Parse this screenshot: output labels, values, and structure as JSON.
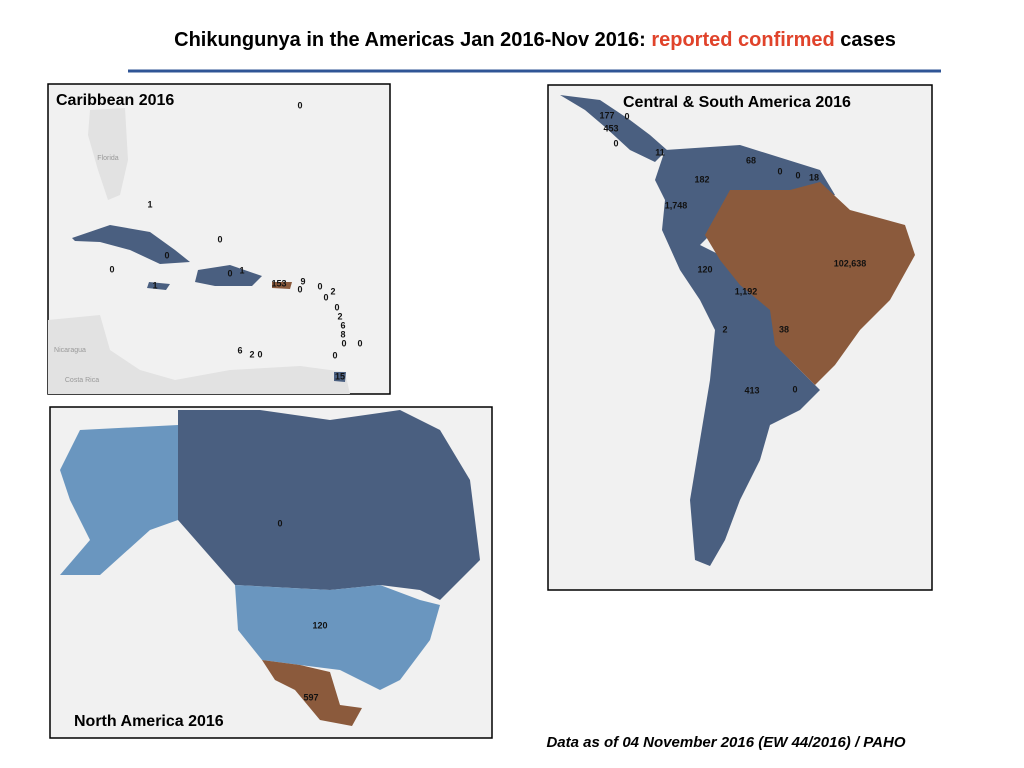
{
  "header": {
    "title": {
      "prefix": "Chikungunya in the Americas Jan 2016-Nov 2016: ",
      "highlight": "reported confirmed",
      "suffix": " cases"
    }
  },
  "caribbean": {
    "title": "Caribbean 2016",
    "places": [
      "Florida",
      "Nicaragua",
      "Costa Rica"
    ],
    "labels": [
      "0",
      "1",
      "0",
      "0",
      "0",
      "1",
      "0",
      "1",
      "153",
      "9",
      "0",
      "0",
      "2",
      "0",
      "0",
      "2",
      "6",
      "8",
      "0",
      "0",
      "6",
      "2",
      "0",
      "0",
      "15"
    ]
  },
  "central_south": {
    "title": "Central & South America  2016",
    "labels": [
      "177",
      "0",
      "453",
      "0",
      "11",
      "68",
      "0",
      "0",
      "18",
      "182",
      "1,748",
      "102,638",
      "120",
      "1,192",
      "2",
      "38",
      "413",
      "0"
    ]
  },
  "north_america": {
    "title": "North America  2016",
    "labels": [
      "0",
      "120",
      "597"
    ]
  },
  "footer": {
    "source": "Data as of 04 November  2016 (EW 44/2016) / PAHO"
  }
}
